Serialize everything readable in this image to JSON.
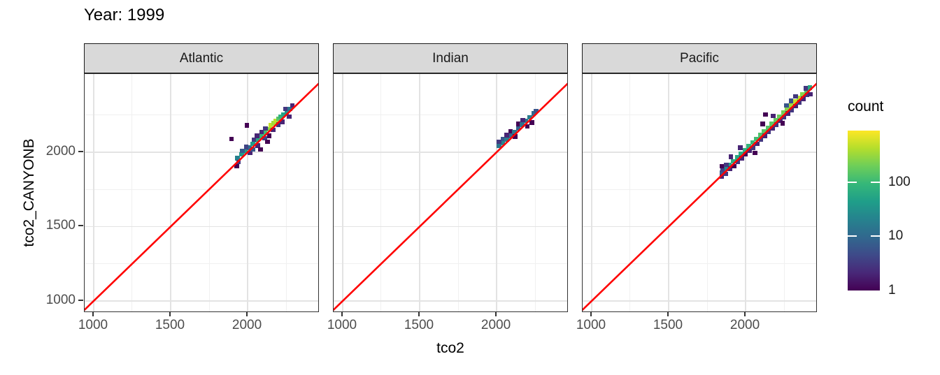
{
  "chart_data": {
    "type": "bin2d",
    "title": "Year: 1999",
    "xlabel": "tco2",
    "ylabel": "tco2_CANYONB",
    "x_domain": [
      941,
      2468
    ],
    "y_domain": [
      920,
      2526
    ],
    "x_major_ticks": [
      1000,
      1500,
      2000
    ],
    "y_major_ticks": [
      2000,
      1500,
      1000
    ],
    "x_minor_ticks": [
      1250,
      1750,
      2250
    ],
    "y_minor_ticks": [
      2250,
      1750,
      1250
    ],
    "bin_size": 30,
    "grid": "on",
    "legend_position": "right",
    "reference_line": {
      "type": "y=x",
      "color": "#FF0000"
    },
    "legend": {
      "title": "count",
      "scale": "log10",
      "range": [
        1,
        900
      ],
      "tick_values": [
        100,
        10,
        1
      ],
      "tick_labels": [
        "100",
        "10",
        "1"
      ],
      "viridis_stops": [
        "#440154",
        "#482878",
        "#3E4A89",
        "#31688E",
        "#26828E",
        "#1F9E89",
        "#35B779",
        "#6DCE59",
        "#B4DE2C",
        "#FDE725"
      ]
    },
    "facets": [
      {
        "name": "Atlantic",
        "bins": [
          [
            1935,
            1960,
            20
          ],
          [
            1960,
            1985,
            35
          ],
          [
            1985,
            2005,
            45
          ],
          [
            2010,
            2030,
            12
          ],
          [
            2035,
            2055,
            40
          ],
          [
            2060,
            2080,
            60
          ],
          [
            2085,
            2105,
            75
          ],
          [
            2110,
            2130,
            100
          ],
          [
            2135,
            2155,
            250
          ],
          [
            2150,
            2180,
            500
          ],
          [
            2170,
            2195,
            350
          ],
          [
            2185,
            2210,
            450
          ],
          [
            2200,
            2225,
            150
          ],
          [
            2215,
            2240,
            80
          ],
          [
            2235,
            2255,
            50
          ],
          [
            2255,
            2270,
            30
          ],
          [
            2275,
            2290,
            14
          ],
          [
            1940,
            1935,
            3
          ],
          [
            1965,
            2010,
            7
          ],
          [
            1990,
            2035,
            4
          ],
          [
            2015,
            1995,
            2
          ],
          [
            2040,
            2085,
            3
          ],
          [
            2065,
            2045,
            2
          ],
          [
            2090,
            2135,
            2
          ],
          [
            2115,
            2160,
            3
          ],
          [
            2140,
            2110,
            1
          ],
          [
            2165,
            2150,
            2
          ],
          [
            2200,
            2185,
            3
          ],
          [
            2225,
            2205,
            2
          ],
          [
            2245,
            2290,
            3
          ],
          [
            2270,
            2240,
            2
          ],
          [
            2290,
            2315,
            2
          ],
          [
            2035,
            2020,
            6
          ],
          [
            2110,
            2095,
            4
          ],
          [
            2060,
            2110,
            2
          ],
          [
            1895,
            2090,
            1
          ],
          [
            1995,
            2180,
            1
          ],
          [
            2085,
            2020,
            1
          ],
          [
            1930,
            1905,
            1
          ],
          [
            2130,
            2070,
            1
          ]
        ]
      },
      {
        "name": "Indian",
        "bins": [
          [
            2015,
            2045,
            14
          ],
          [
            2040,
            2062,
            22
          ],
          [
            2040,
            2090,
            6
          ],
          [
            2065,
            2085,
            18
          ],
          [
            2090,
            2110,
            10
          ],
          [
            2090,
            2140,
            1
          ],
          [
            2115,
            2135,
            15
          ],
          [
            2140,
            2160,
            8
          ],
          [
            2140,
            2190,
            1
          ],
          [
            2165,
            2185,
            12
          ],
          [
            2190,
            2210,
            14
          ],
          [
            2215,
            2235,
            18
          ],
          [
            2240,
            2260,
            10
          ],
          [
            2258,
            2278,
            6
          ],
          [
            2120,
            2105,
            1
          ],
          [
            2200,
            2175,
            1
          ],
          [
            2230,
            2200,
            1
          ],
          [
            2170,
            2215,
            2
          ],
          [
            2065,
            2115,
            2
          ],
          [
            2015,
            2070,
            3
          ]
        ]
      },
      {
        "name": "Pacific",
        "bins": [
          [
            1845,
            1865,
            6
          ],
          [
            1870,
            1890,
            25
          ],
          [
            1895,
            1915,
            50
          ],
          [
            1920,
            1940,
            70
          ],
          [
            1945,
            1965,
            60
          ],
          [
            1970,
            1990,
            65
          ],
          [
            1995,
            2015,
            75
          ],
          [
            2020,
            2040,
            85
          ],
          [
            2045,
            2065,
            95
          ],
          [
            2070,
            2090,
            110
          ],
          [
            2095,
            2115,
            130
          ],
          [
            2120,
            2140,
            150
          ],
          [
            2145,
            2165,
            140
          ],
          [
            2170,
            2190,
            160
          ],
          [
            2195,
            2215,
            175
          ],
          [
            2220,
            2240,
            190
          ],
          [
            2245,
            2265,
            210
          ],
          [
            2270,
            2290,
            260
          ],
          [
            2295,
            2315,
            340
          ],
          [
            2320,
            2340,
            500
          ],
          [
            2345,
            2365,
            430
          ],
          [
            2370,
            2390,
            260
          ],
          [
            2395,
            2415,
            130
          ],
          [
            2418,
            2435,
            60
          ],
          [
            1845,
            1835,
            2
          ],
          [
            1870,
            1855,
            3
          ],
          [
            1850,
            1885,
            4
          ],
          [
            1875,
            1915,
            3
          ],
          [
            1900,
            1890,
            2
          ],
          [
            1925,
            1905,
            1
          ],
          [
            1950,
            1935,
            3
          ],
          [
            1975,
            1960,
            2
          ],
          [
            2000,
            1985,
            1
          ],
          [
            2025,
            2010,
            2
          ],
          [
            2050,
            2030,
            3
          ],
          [
            2075,
            2055,
            2
          ],
          [
            2100,
            2085,
            3
          ],
          [
            2125,
            2110,
            2
          ],
          [
            2150,
            2135,
            3
          ],
          [
            2175,
            2160,
            2
          ],
          [
            2200,
            2185,
            3
          ],
          [
            2225,
            2210,
            2
          ],
          [
            2250,
            2235,
            3
          ],
          [
            2275,
            2260,
            2
          ],
          [
            2300,
            2285,
            3
          ],
          [
            2325,
            2310,
            2
          ],
          [
            2350,
            2335,
            3
          ],
          [
            2375,
            2360,
            2
          ],
          [
            2400,
            2385,
            3
          ],
          [
            2060,
            1995,
            1
          ],
          [
            2130,
            2255,
            1
          ],
          [
            2240,
            2195,
            1
          ],
          [
            2295,
            2345,
            5
          ],
          [
            2325,
            2375,
            3
          ],
          [
            2390,
            2430,
            3
          ],
          [
            2420,
            2390,
            2
          ],
          [
            1965,
            2030,
            2
          ],
          [
            1905,
            1970,
            2
          ],
          [
            2110,
            2190,
            1
          ],
          [
            2265,
            2315,
            6
          ],
          [
            2180,
            2245,
            2
          ],
          [
            1845,
            1905,
            1
          ]
        ]
      }
    ]
  },
  "colors": {
    "reference_line": "#FF0000",
    "strip_background": "#D9D9D9",
    "panel_border": "#333333",
    "grid_major": "#E3E3E3",
    "grid_minor": "#F0F0F0",
    "tick_text": "#4D4D4D",
    "text": "#000000"
  }
}
